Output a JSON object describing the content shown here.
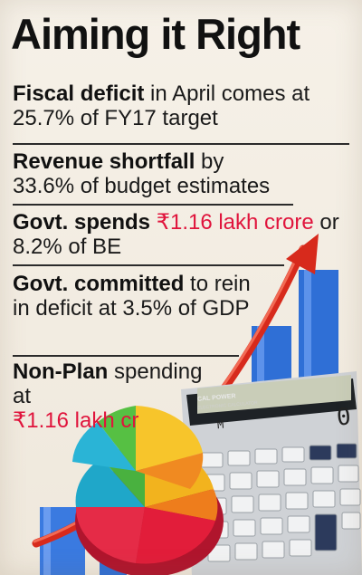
{
  "title": "Aiming it Right",
  "points": [
    {
      "bold": "Fiscal deficit",
      "rest": " in April comes at 25.7% of FY17 target"
    },
    {
      "bold": "Revenue shortfall",
      "rest": " by 33.6% of budget estimates"
    },
    {
      "bold": "Govt. spends",
      "highlight": "₹1.16 lakh crore",
      "rest": " or 8.2% of BE"
    },
    {
      "bold": "Govt. committed",
      "rest": " to rein in deficit at 3.5% of GDP"
    },
    {
      "bold": "Non-Plan",
      "rest": " spending at",
      "highlight": "₹1.16 lakh cr"
    }
  ],
  "calculator": {
    "brand": "CAL POWER",
    "subtitle": "ELECTRONIC CALCULATOR",
    "display_mode": "M",
    "display_value": "0"
  },
  "colors": {
    "highlight": "#e0143c",
    "arrow": "#d72a1c",
    "bars": "#2f6fd6"
  }
}
